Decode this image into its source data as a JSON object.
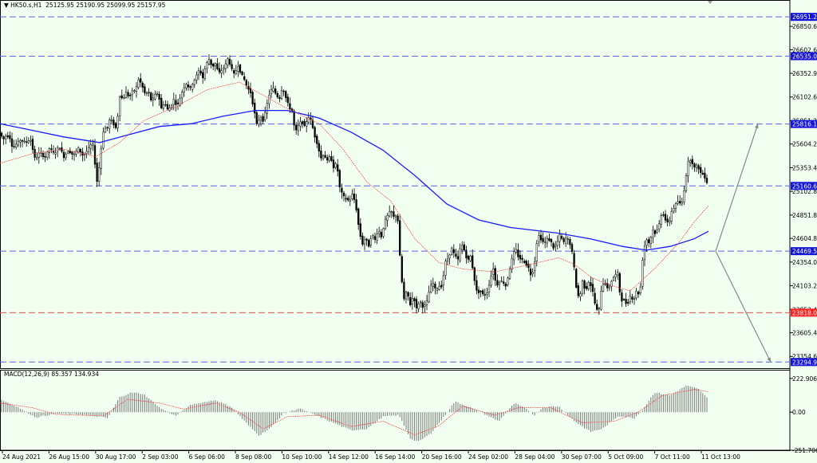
{
  "header": {
    "symbol": "HK50.s,H1",
    "ohlc": "25125.95 25190.95 25099.95 25157.95"
  },
  "macd": {
    "label": "MACD(12,26,9) 85.357 134.934"
  },
  "colors": {
    "bg": "#f0fff0",
    "hline_blue": "#5a64e6",
    "hline_red": "#e05050",
    "ma_blue": "#1a1aff",
    "ma_red": "#ff4040",
    "arrow": "#888888"
  },
  "chart_data": {
    "type": "candlestick",
    "title": "HK50.s,H1",
    "ylim": [
      23230,
      27130
    ],
    "y_ticks": [
      "26850.60",
      "26602.60",
      "26352.90",
      "26102.60",
      "25851.20",
      "25604.20",
      "25353.40",
      "25102.80",
      "24851.80",
      "24604.80",
      "24354.00",
      "24103.20",
      "23852.40",
      "23605.40",
      "23354.60"
    ],
    "x_ticks": [
      "24 Aug 2021",
      "26 Aug 15:00",
      "30 Aug 17:00",
      "2 Sep 03:00",
      "6 Sep 06:00",
      "8 Sep 08:00",
      "10 Sep 10:00",
      "14 Sep 12:00",
      "16 Sep 14:00",
      "20 Sep 16:00",
      "24 Sep 02:00",
      "28 Sep 04:00",
      "30 Sep 07:00",
      "5 Oct 09:00",
      "7 Oct 11:00",
      "11 Oct 13:00"
    ],
    "price_path": [
      [
        0,
        25720
      ],
      [
        4,
        25650
      ],
      [
        8,
        25700
      ],
      [
        12,
        25680
      ],
      [
        16,
        25560
      ],
      [
        20,
        25600
      ],
      [
        26,
        25650
      ],
      [
        32,
        25620
      ],
      [
        38,
        25660
      ],
      [
        44,
        25440
      ],
      [
        50,
        25520
      ],
      [
        56,
        25460
      ],
      [
        62,
        25560
      ],
      [
        68,
        25500
      ],
      [
        74,
        25580
      ],
      [
        80,
        25470
      ],
      [
        86,
        25540
      ],
      [
        92,
        25480
      ],
      [
        98,
        25560
      ],
      [
        104,
        25480
      ],
      [
        110,
        25540
      ],
      [
        116,
        25620
      ],
      [
        122,
        25180
      ],
      [
        126,
        25500
      ],
      [
        130,
        25780
      ],
      [
        134,
        25760
      ],
      [
        138,
        25880
      ],
      [
        142,
        25820
      ],
      [
        146,
        25760
      ],
      [
        150,
        26120
      ],
      [
        154,
        26080
      ],
      [
        158,
        26150
      ],
      [
        162,
        26100
      ],
      [
        166,
        26160
      ],
      [
        170,
        26180
      ],
      [
        174,
        26300
      ],
      [
        178,
        26220
      ],
      [
        182,
        26130
      ],
      [
        186,
        26160
      ],
      [
        190,
        26050
      ],
      [
        194,
        26120
      ],
      [
        198,
        26150
      ],
      [
        202,
        25980
      ],
      [
        206,
        26050
      ],
      [
        210,
        25970
      ],
      [
        214,
        26000
      ],
      [
        218,
        26080
      ],
      [
        222,
        26000
      ],
      [
        226,
        26100
      ],
      [
        230,
        26200
      ],
      [
        234,
        26250
      ],
      [
        238,
        26180
      ],
      [
        242,
        26260
      ],
      [
        246,
        26320
      ],
      [
        250,
        26400
      ],
      [
        254,
        26300
      ],
      [
        258,
        26440
      ],
      [
        262,
        26500
      ],
      [
        266,
        26420
      ],
      [
        270,
        26460
      ],
      [
        274,
        26350
      ],
      [
        278,
        26390
      ],
      [
        282,
        26430
      ],
      [
        286,
        26520
      ],
      [
        290,
        26400
      ],
      [
        294,
        26330
      ],
      [
        298,
        26450
      ],
      [
        302,
        26350
      ],
      [
        306,
        26290
      ],
      [
        310,
        26200
      ],
      [
        314,
        26150
      ],
      [
        318,
        25980
      ],
      [
        322,
        25800
      ],
      [
        326,
        25900
      ],
      [
        330,
        25850
      ],
      [
        334,
        26000
      ],
      [
        338,
        26150
      ],
      [
        342,
        26200
      ],
      [
        346,
        26130
      ],
      [
        350,
        26080
      ],
      [
        354,
        26210
      ],
      [
        358,
        26100
      ],
      [
        362,
        26000
      ],
      [
        366,
        25950
      ],
      [
        370,
        25720
      ],
      [
        374,
        25800
      ],
      [
        378,
        25850
      ],
      [
        382,
        25780
      ],
      [
        386,
        25900
      ],
      [
        390,
        25850
      ],
      [
        394,
        25700
      ],
      [
        398,
        25600
      ],
      [
        402,
        25450
      ],
      [
        406,
        25500
      ],
      [
        410,
        25420
      ],
      [
        414,
        25480
      ],
      [
        418,
        25360
      ],
      [
        422,
        25400
      ],
      [
        426,
        25130
      ],
      [
        430,
        25050
      ],
      [
        434,
        25020
      ],
      [
        438,
        25000
      ],
      [
        442,
        25080
      ],
      [
        446,
        24950
      ],
      [
        450,
        24700
      ],
      [
        454,
        24540
      ],
      [
        458,
        24610
      ],
      [
        462,
        24520
      ],
      [
        466,
        24650
      ],
      [
        470,
        24590
      ],
      [
        474,
        24700
      ],
      [
        478,
        24620
      ],
      [
        482,
        24780
      ],
      [
        486,
        24850
      ],
      [
        490,
        24900
      ],
      [
        494,
        24820
      ],
      [
        498,
        24880
      ],
      [
        502,
        24300
      ],
      [
        506,
        23950
      ],
      [
        510,
        24050
      ],
      [
        514,
        23900
      ],
      [
        518,
        24000
      ],
      [
        522,
        23860
      ],
      [
        526,
        23950
      ],
      [
        530,
        23880
      ],
      [
        534,
        23900
      ],
      [
        538,
        24050
      ],
      [
        542,
        24150
      ],
      [
        546,
        24050
      ],
      [
        550,
        24100
      ],
      [
        554,
        24100
      ],
      [
        558,
        24350
      ],
      [
        562,
        24400
      ],
      [
        566,
        24500
      ],
      [
        570,
        24420
      ],
      [
        574,
        24380
      ],
      [
        578,
        24550
      ],
      [
        582,
        24480
      ],
      [
        586,
        24360
      ],
      [
        590,
        24420
      ],
      [
        594,
        24200
      ],
      [
        598,
        24020
      ],
      [
        602,
        24050
      ],
      [
        606,
        24000
      ],
      [
        610,
        24020
      ],
      [
        614,
        24150
      ],
      [
        618,
        24300
      ],
      [
        622,
        24100
      ],
      [
        626,
        24150
      ],
      [
        630,
        24150
      ],
      [
        634,
        24100
      ],
      [
        638,
        24250
      ],
      [
        642,
        24400
      ],
      [
        646,
        24500
      ],
      [
        650,
        24400
      ],
      [
        654,
        24380
      ],
      [
        658,
        24350
      ],
      [
        662,
        24300
      ],
      [
        666,
        24200
      ],
      [
        670,
        24350
      ],
      [
        674,
        24650
      ],
      [
        678,
        24600
      ],
      [
        682,
        24550
      ],
      [
        686,
        24600
      ],
      [
        690,
        24580
      ],
      [
        694,
        24500
      ],
      [
        698,
        24550
      ],
      [
        702,
        24650
      ],
      [
        706,
        24550
      ],
      [
        710,
        24620
      ],
      [
        714,
        24560
      ],
      [
        718,
        24420
      ],
      [
        722,
        24100
      ],
      [
        726,
        23950
      ],
      [
        730,
        24150
      ],
      [
        734,
        24050
      ],
      [
        738,
        24150
      ],
      [
        742,
        24080
      ],
      [
        746,
        23900
      ],
      [
        750,
        23800
      ],
      [
        754,
        24100
      ],
      [
        758,
        24150
      ],
      [
        762,
        24050
      ],
      [
        766,
        24150
      ],
      [
        770,
        24200
      ],
      [
        774,
        24250
      ],
      [
        778,
        23950
      ],
      [
        782,
        23950
      ],
      [
        786,
        23900
      ],
      [
        790,
        24000
      ],
      [
        794,
        23950
      ],
      [
        798,
        24050
      ],
      [
        802,
        24000
      ],
      [
        806,
        24450
      ],
      [
        810,
        24600
      ],
      [
        814,
        24550
      ],
      [
        818,
        24700
      ],
      [
        822,
        24650
      ],
      [
        826,
        24750
      ],
      [
        830,
        24900
      ],
      [
        834,
        24800
      ],
      [
        838,
        24750
      ],
      [
        842,
        24900
      ],
      [
        846,
        24950
      ],
      [
        850,
        25000
      ],
      [
        854,
        24950
      ],
      [
        858,
        25150
      ],
      [
        862,
        25400
      ],
      [
        866,
        25450
      ],
      [
        870,
        25350
      ],
      [
        874,
        25380
      ],
      [
        878,
        25300
      ],
      [
        882,
        25280
      ],
      [
        886,
        25200
      ],
      [
        890,
        25160
      ]
    ],
    "blue_ma_path": [
      [
        0,
        25820
      ],
      [
        40,
        25750
      ],
      [
        80,
        25680
      ],
      [
        125,
        25620
      ],
      [
        160,
        25700
      ],
      [
        200,
        25790
      ],
      [
        240,
        25820
      ],
      [
        280,
        25900
      ],
      [
        320,
        25960
      ],
      [
        360,
        25960
      ],
      [
        400,
        25880
      ],
      [
        440,
        25730
      ],
      [
        480,
        25540
      ],
      [
        520,
        25270
      ],
      [
        560,
        24970
      ],
      [
        600,
        24800
      ],
      [
        640,
        24720
      ],
      [
        700,
        24660
      ],
      [
        740,
        24600
      ],
      [
        780,
        24520
      ],
      [
        810,
        24480
      ],
      [
        840,
        24520
      ],
      [
        870,
        24600
      ],
      [
        888,
        24680
      ]
    ],
    "red_ma_path": [
      [
        0,
        25400
      ],
      [
        40,
        25500
      ],
      [
        80,
        25550
      ],
      [
        120,
        25470
      ],
      [
        150,
        25620
      ],
      [
        180,
        25850
      ],
      [
        220,
        26000
      ],
      [
        260,
        26180
      ],
      [
        300,
        26260
      ],
      [
        330,
        26120
      ],
      [
        360,
        25980
      ],
      [
        400,
        25820
      ],
      [
        430,
        25550
      ],
      [
        460,
        25200
      ],
      [
        490,
        25000
      ],
      [
        520,
        24600
      ],
      [
        550,
        24350
      ],
      [
        580,
        24280
      ],
      [
        620,
        24250
      ],
      [
        660,
        24320
      ],
      [
        700,
        24400
      ],
      [
        720,
        24330
      ],
      [
        740,
        24200
      ],
      [
        760,
        24120
      ],
      [
        790,
        24050
      ],
      [
        820,
        24280
      ],
      [
        850,
        24550
      ],
      [
        870,
        24780
      ],
      [
        888,
        24950
      ]
    ],
    "hlines": [
      {
        "value": 26951.26,
        "label": "26951.26",
        "color": "blue"
      },
      {
        "value": 26535.0,
        "label": "26535.00",
        "color": "blue"
      },
      {
        "value": 25816.19,
        "label": "25816.19",
        "color": "blue"
      },
      {
        "value": 25160.63,
        "label": "25160.63",
        "color": "blue"
      },
      {
        "value": 24469.58,
        "label": "24469.58",
        "color": "blue"
      },
      {
        "value": 23818.0,
        "label": "23818.00",
        "color": "red"
      },
      {
        "value": 23294.97,
        "label": "23294.97",
        "color": "blue"
      }
    ],
    "arrows": [
      {
        "from": [
          897,
          24470
        ],
        "to": [
          950,
          25818
        ]
      },
      {
        "from": [
          897,
          24470
        ],
        "to": [
          966,
          23294
        ]
      }
    ],
    "macd": {
      "ylim": [
        -251.7,
        280
      ],
      "y_ticks": [
        "222.906",
        "0.00",
        "-251.706"
      ],
      "hist_path": [
        [
          0,
          85
        ],
        [
          20,
          40
        ],
        [
          45,
          -35
        ],
        [
          70,
          -10
        ],
        [
          100,
          -15
        ],
        [
          125,
          -30
        ],
        [
          135,
          -40
        ],
        [
          150,
          100
        ],
        [
          165,
          130
        ],
        [
          180,
          120
        ],
        [
          200,
          30
        ],
        [
          220,
          -25
        ],
        [
          240,
          50
        ],
        [
          270,
          80
        ],
        [
          290,
          35
        ],
        [
          310,
          -80
        ],
        [
          325,
          -155
        ],
        [
          340,
          -100
        ],
        [
          355,
          -10
        ],
        [
          375,
          25
        ],
        [
          400,
          -30
        ],
        [
          420,
          -75
        ],
        [
          440,
          -120
        ],
        [
          460,
          -110
        ],
        [
          480,
          -30
        ],
        [
          500,
          -20
        ],
        [
          515,
          -180
        ],
        [
          525,
          -195
        ],
        [
          540,
          -140
        ],
        [
          555,
          -40
        ],
        [
          570,
          70
        ],
        [
          590,
          30
        ],
        [
          610,
          -20
        ],
        [
          625,
          -60
        ],
        [
          645,
          60
        ],
        [
          660,
          20
        ],
        [
          670,
          -20
        ],
        [
          680,
          30
        ],
        [
          700,
          40
        ],
        [
          720,
          -60
        ],
        [
          740,
          -130
        ],
        [
          755,
          -110
        ],
        [
          775,
          -25
        ],
        [
          795,
          -40
        ],
        [
          805,
          10
        ],
        [
          820,
          130
        ],
        [
          840,
          110
        ],
        [
          860,
          175
        ],
        [
          875,
          155
        ],
        [
          888,
          85
        ]
      ],
      "signal_path": [
        [
          0,
          60
        ],
        [
          40,
          30
        ],
        [
          70,
          -15
        ],
        [
          130,
          -25
        ],
        [
          160,
          85
        ],
        [
          200,
          60
        ],
        [
          230,
          20
        ],
        [
          270,
          60
        ],
        [
          300,
          0
        ],
        [
          330,
          -110
        ],
        [
          360,
          -30
        ],
        [
          400,
          -20
        ],
        [
          440,
          -95
        ],
        [
          480,
          -60
        ],
        [
          520,
          -150
        ],
        [
          550,
          -90
        ],
        [
          580,
          40
        ],
        [
          620,
          -20
        ],
        [
          650,
          30
        ],
        [
          690,
          30
        ],
        [
          730,
          -70
        ],
        [
          770,
          -60
        ],
        [
          800,
          0
        ],
        [
          830,
          110
        ],
        [
          870,
          150
        ],
        [
          888,
          135
        ]
      ]
    }
  }
}
